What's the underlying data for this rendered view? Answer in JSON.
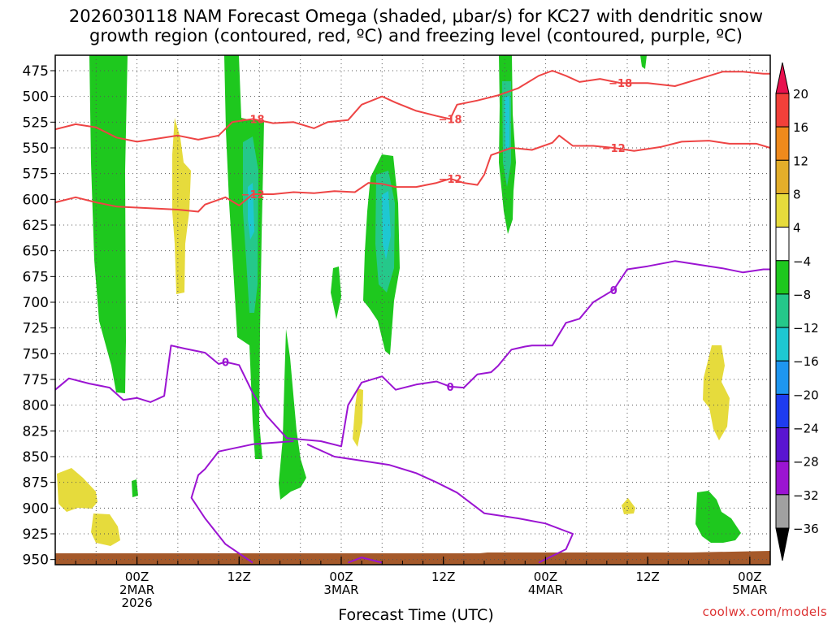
{
  "title": {
    "line1": "2026030118 NAM Forecast Omega (shaded, μbar/s) for KC27 with dendritic snow",
    "line2": "growth region (contoured, red, ºC) and freezing level (contoured, purple, ºC)"
  },
  "credit": "coolwx.com/models",
  "chart_data": {
    "type": "heatmap",
    "xlabel": "Forecast Time (UTC)",
    "ylabel": "",
    "x_range_hours": [
      -12,
      93
    ],
    "y_range_hpa": [
      460,
      955
    ],
    "y_ticks": [
      "475",
      "500",
      "525",
      "550",
      "575",
      "600",
      "625",
      "650",
      "675",
      "700",
      "725",
      "750",
      "775",
      "800",
      "825",
      "850",
      "875",
      "900",
      "925",
      "950"
    ],
    "x_ticks": [
      {
        "hour": 0,
        "lines": [
          "00Z",
          "2MAR",
          "2026"
        ]
      },
      {
        "hour": 15,
        "lines": [
          "12Z"
        ]
      },
      {
        "hour": 30,
        "lines": [
          "00Z",
          "3MAR"
        ]
      },
      {
        "hour": 45,
        "lines": [
          "12Z"
        ]
      },
      {
        "hour": 60,
        "lines": [
          "00Z",
          "4MAR"
        ]
      },
      {
        "hour": 75,
        "lines": [
          "12Z"
        ]
      },
      {
        "hour": 90,
        "lines": [
          "00Z",
          "5MAR"
        ]
      }
    ],
    "colorbar": {
      "labels": [
        "20",
        "16",
        "12",
        "8",
        "4",
        "−4",
        "−8",
        "−12",
        "−16",
        "−20",
        "−24",
        "−28",
        "−32",
        "−36"
      ],
      "colors": [
        "#e8104e",
        "#f2403a",
        "#ef8a1c",
        "#e3ae2a",
        "#e6db3c",
        "#ffffff",
        "#1ec81e",
        "#25c88a",
        "#1ec8d2",
        "#1e96f0",
        "#1e3cf0",
        "#5a14d2",
        "#9b14d2",
        "#a0a0a0",
        "#000000"
      ]
    },
    "contours": [
      {
        "color": "#ee4444",
        "label": "−18",
        "points": [
          [
            -12,
            532
          ],
          [
            -9,
            527
          ],
          [
            -6,
            530
          ],
          [
            -3,
            540
          ],
          [
            0,
            544
          ],
          [
            3,
            541
          ],
          [
            6,
            538
          ],
          [
            9,
            542
          ],
          [
            12,
            538
          ],
          [
            14,
            525
          ],
          [
            17,
            522
          ],
          [
            20,
            526
          ],
          [
            23,
            525
          ],
          [
            26,
            531
          ],
          [
            28,
            525
          ],
          [
            31,
            523
          ],
          [
            33,
            508
          ],
          [
            36,
            500
          ],
          [
            38,
            506
          ],
          [
            41,
            514
          ],
          [
            44,
            519
          ],
          [
            46,
            522
          ],
          [
            47,
            508
          ],
          [
            50,
            504
          ],
          [
            53,
            499
          ],
          [
            56,
            492
          ],
          [
            59,
            480
          ],
          [
            61,
            475
          ],
          [
            63,
            480
          ],
          [
            65,
            486
          ],
          [
            68,
            483
          ],
          [
            71,
            487
          ],
          [
            75,
            487
          ],
          [
            79,
            490
          ],
          [
            83,
            482
          ],
          [
            86,
            476
          ],
          [
            89,
            476
          ],
          [
            92,
            478
          ],
          [
            93,
            478
          ]
        ]
      },
      {
        "color": "#ee4444",
        "label": "−12",
        "points": [
          [
            -12,
            603
          ],
          [
            -9,
            598
          ],
          [
            -6,
            603
          ],
          [
            -3,
            607
          ],
          [
            0,
            608
          ],
          [
            3,
            609
          ],
          [
            6,
            610
          ],
          [
            9,
            612
          ],
          [
            10,
            605
          ],
          [
            13,
            598
          ],
          [
            15,
            606
          ],
          [
            17,
            595
          ],
          [
            20,
            595
          ],
          [
            23,
            593
          ],
          [
            26,
            594
          ],
          [
            29,
            592
          ],
          [
            32,
            593
          ],
          [
            34,
            584
          ],
          [
            36,
            585
          ],
          [
            38,
            588
          ],
          [
            41,
            588
          ],
          [
            44,
            584
          ],
          [
            46,
            580
          ],
          [
            48,
            584
          ],
          [
            50,
            586
          ],
          [
            51,
            576
          ],
          [
            52,
            557
          ],
          [
            55,
            550
          ],
          [
            58,
            552
          ],
          [
            61,
            545
          ],
          [
            62,
            538
          ],
          [
            64,
            548
          ],
          [
            67,
            548
          ],
          [
            70,
            550
          ],
          [
            73,
            553
          ],
          [
            77,
            549
          ],
          [
            80,
            544
          ],
          [
            84,
            543
          ],
          [
            87,
            546
          ],
          [
            91,
            546
          ],
          [
            93,
            550
          ]
        ]
      },
      {
        "color": "#9b14d2",
        "label": "0",
        "points": [
          [
            -12,
            785
          ],
          [
            -10,
            774
          ],
          [
            -7,
            779
          ],
          [
            -4,
            783
          ],
          [
            -2,
            795
          ],
          [
            0,
            793
          ],
          [
            2,
            797
          ],
          [
            4,
            791
          ],
          [
            5,
            742
          ],
          [
            7,
            745
          ],
          [
            10,
            749
          ],
          [
            12,
            760
          ],
          [
            13,
            758
          ],
          [
            15,
            761
          ],
          [
            17,
            788
          ],
          [
            19,
            810
          ],
          [
            22,
            832
          ],
          [
            27,
            835
          ],
          [
            30,
            840
          ],
          [
            31,
            800
          ],
          [
            33,
            778
          ],
          [
            36,
            772
          ],
          [
            38,
            785
          ],
          [
            41,
            780
          ],
          [
            44,
            777
          ],
          [
            46,
            782
          ],
          [
            48,
            783
          ],
          [
            50,
            770
          ],
          [
            52,
            768
          ],
          [
            53,
            762
          ],
          [
            55,
            746
          ],
          [
            57,
            743
          ],
          [
            58,
            742
          ],
          [
            61,
            742
          ],
          [
            63,
            720
          ],
          [
            65,
            716
          ],
          [
            67,
            700
          ],
          [
            70,
            688
          ],
          [
            72,
            668
          ],
          [
            75,
            665
          ],
          [
            79,
            660
          ],
          [
            82,
            663
          ],
          [
            86,
            667
          ],
          [
            89,
            671
          ],
          [
            92,
            668
          ],
          [
            93,
            668
          ]
        ]
      },
      {
        "color": "#9b14d2",
        "label": "",
        "points": [
          [
            23,
            835
          ],
          [
            17,
            838
          ],
          [
            12,
            845
          ],
          [
            10,
            862
          ],
          [
            9,
            868
          ],
          [
            8,
            890
          ],
          [
            10,
            910
          ],
          [
            13,
            935
          ],
          [
            17,
            953
          ]
        ]
      },
      {
        "color": "#9b14d2",
        "label": "",
        "points": [
          [
            25,
            838
          ],
          [
            29,
            850
          ],
          [
            32,
            853
          ],
          [
            37,
            858
          ],
          [
            41,
            866
          ],
          [
            44,
            875
          ],
          [
            47,
            885
          ],
          [
            51,
            905
          ],
          [
            56,
            910
          ],
          [
            60,
            915
          ],
          [
            64,
            925
          ],
          [
            63,
            940
          ],
          [
            59,
            953
          ]
        ]
      },
      {
        "color": "#9b14d2",
        "label": "",
        "points": [
          [
            31,
            953
          ],
          [
            33,
            948
          ],
          [
            36,
            953
          ]
        ]
      }
    ]
  }
}
